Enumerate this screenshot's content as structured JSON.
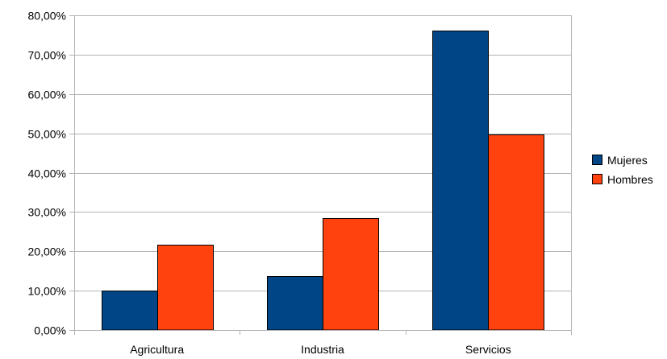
{
  "chart_data": {
    "type": "bar",
    "title": "",
    "xlabel": "",
    "ylabel": "",
    "categories": [
      "Agricultura",
      "Industria",
      "Servicios"
    ],
    "series": [
      {
        "name": "Mujeres",
        "color": "#004586",
        "values": [
          10.0,
          13.8,
          76.1
        ]
      },
      {
        "name": "Hombres",
        "color": "#FF420E",
        "values": [
          21.6,
          28.4,
          49.8
        ]
      }
    ],
    "ylim": [
      0,
      80
    ],
    "yticks": [
      {
        "value": 0,
        "label": "0,00%"
      },
      {
        "value": 10,
        "label": "10,00%"
      },
      {
        "value": 20,
        "label": "20,00%"
      },
      {
        "value": 30,
        "label": "30,00%"
      },
      {
        "value": 40,
        "label": "40,00%"
      },
      {
        "value": 50,
        "label": "50,00%"
      },
      {
        "value": 60,
        "label": "60,00%"
      },
      {
        "value": 70,
        "label": "70,00%"
      },
      {
        "value": 80,
        "label": "80,00%"
      }
    ],
    "grid": true,
    "legend_position": "right"
  }
}
